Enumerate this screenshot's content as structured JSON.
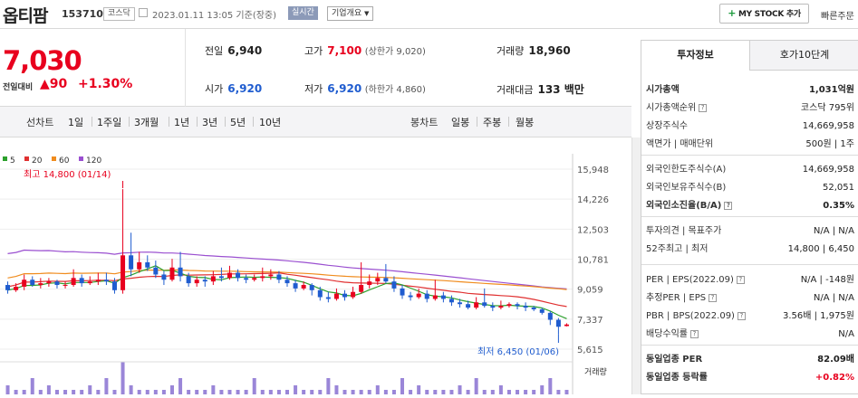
{
  "header": {
    "stock_name": "옵티팜",
    "stock_code": "153710",
    "market_badge": "코스닥",
    "date_text": "2023.01.11 13:05 기준(장중)",
    "realtime_label": "실시간",
    "company_overview_label": "기업개요",
    "my_stock_label": "MY STOCK 추가",
    "quick_order_label": "빠른주문"
  },
  "price_box": {
    "current_price": "7,030",
    "change_label": "전일대비",
    "change_arrow": "▲",
    "change_value": "90",
    "change_percent": "+1.30%",
    "prev_close_label": "전일",
    "prev_close": "6,940",
    "high_label": "고가",
    "high": "7,100",
    "upper_limit_text": "(상한가 9,020)",
    "volume_label": "거래량",
    "volume": "18,960",
    "open_label": "시가",
    "open": "6,920",
    "low_label": "저가",
    "low": "6,920",
    "lower_limit_text": "(하한가 4,860)",
    "amount_label": "거래대금",
    "amount": "133 백만"
  },
  "period_bar": {
    "line_label": "선차트",
    "line_periods": [
      "1일",
      "1주일",
      "3개월",
      "1년",
      "3년",
      "5년",
      "10년"
    ],
    "candle_label": "봉차트",
    "candle_periods": [
      "일봉",
      "주봉",
      "월봉"
    ],
    "active_candle": "주봉"
  },
  "chart_data": {
    "type": "candlestick",
    "legend": [
      {
        "name": "5",
        "color": "#2ca02c"
      },
      {
        "name": "20",
        "color": "#e03030"
      },
      {
        "name": "60",
        "color": "#f08c1e"
      },
      {
        "name": "120",
        "color": "#9a4fd0"
      }
    ],
    "y_ticks": [
      "15,948",
      "14,226",
      "12,503",
      "10,781",
      "9,059",
      "7,337",
      "5,615"
    ],
    "ylim": [
      5615,
      15948
    ],
    "high_annotation": "최고 14,800 (01/14)",
    "low_annotation": "최저 6,450 (01/06)",
    "volume_label": "거래량",
    "candles": [
      [
        9300,
        9000,
        9500,
        8800
      ],
      [
        9000,
        9200,
        9400,
        8900
      ],
      [
        9200,
        9600,
        9900,
        9000
      ],
      [
        9600,
        9300,
        9800,
        9200
      ],
      [
        9300,
        9400,
        9700,
        9100
      ],
      [
        9400,
        9500,
        9700,
        9200
      ],
      [
        9500,
        9300,
        9600,
        9100
      ],
      [
        9300,
        9300,
        9500,
        9100
      ],
      [
        9300,
        9700,
        10200,
        9200
      ],
      [
        9700,
        9400,
        9900,
        9200
      ],
      [
        9400,
        9500,
        9800,
        9300
      ],
      [
        9500,
        9600,
        10000,
        9300
      ],
      [
        9600,
        9500,
        10000,
        9300
      ],
      [
        9500,
        9000,
        9700,
        8800
      ],
      [
        9000,
        11000,
        14800,
        8800
      ],
      [
        11000,
        10200,
        12300,
        9800
      ],
      [
        10200,
        10600,
        11200,
        10000
      ],
      [
        10600,
        10300,
        11000,
        10100
      ],
      [
        10300,
        9900,
        10700,
        9700
      ],
      [
        9900,
        9600,
        10100,
        9300
      ],
      [
        9600,
        10300,
        10800,
        9500
      ],
      [
        10300,
        9800,
        11200,
        9500
      ],
      [
        9800,
        9400,
        10000,
        9200
      ],
      [
        9400,
        9600,
        9800,
        9200
      ],
      [
        9600,
        9500,
        9800,
        9200
      ],
      [
        9500,
        9800,
        10100,
        9300
      ],
      [
        9800,
        9700,
        10300,
        9500
      ],
      [
        9700,
        10000,
        10400,
        9600
      ],
      [
        10000,
        9700,
        10200,
        9500
      ],
      [
        9700,
        9600,
        9900,
        9400
      ],
      [
        9600,
        9700,
        9900,
        9500
      ],
      [
        9700,
        9800,
        10300,
        9500
      ],
      [
        9800,
        9900,
        10200,
        9600
      ],
      [
        9900,
        9600,
        10100,
        9400
      ],
      [
        9600,
        9400,
        9800,
        9200
      ],
      [
        9400,
        9100,
        9600,
        8900
      ],
      [
        9100,
        9300,
        9500,
        9000
      ],
      [
        9300,
        9000,
        9400,
        8700
      ],
      [
        9000,
        8600,
        9200,
        8400
      ],
      [
        8600,
        8500,
        8900,
        8300
      ],
      [
        8500,
        8800,
        9100,
        8400
      ],
      [
        8800,
        8600,
        9000,
        8400
      ],
      [
        8600,
        8900,
        9200,
        8500
      ],
      [
        8900,
        9300,
        10600,
        8800
      ],
      [
        9300,
        9500,
        9900,
        9100
      ],
      [
        9500,
        9700,
        10000,
        9300
      ],
      [
        9700,
        9500,
        10500,
        9400
      ],
      [
        9500,
        9100,
        9800,
        8900
      ],
      [
        9100,
        8700,
        9300,
        8500
      ],
      [
        8700,
        8600,
        8900,
        8400
      ],
      [
        8600,
        8800,
        9100,
        8500
      ],
      [
        8800,
        8500,
        9000,
        8300
      ],
      [
        8500,
        8700,
        9600,
        8400
      ],
      [
        8700,
        8500,
        8900,
        8300
      ],
      [
        8500,
        8300,
        8700,
        8100
      ],
      [
        8300,
        8200,
        8500,
        8000
      ],
      [
        8200,
        8000,
        8400,
        7900
      ],
      [
        8000,
        8300,
        8600,
        7900
      ],
      [
        8300,
        8100,
        9100,
        8000
      ],
      [
        8100,
        8000,
        8300,
        7800
      ],
      [
        8000,
        8100,
        8400,
        7900
      ],
      [
        8100,
        8200,
        8300,
        8000
      ],
      [
        8200,
        8100,
        8300,
        7900
      ],
      [
        8100,
        8000,
        8300,
        7800
      ],
      [
        8000,
        7900,
        8100,
        7800
      ],
      [
        7900,
        7700,
        8000,
        7600
      ],
      [
        7700,
        7300,
        7800,
        7000
      ],
      [
        7300,
        6900,
        7400,
        6450
      ],
      [
        6940,
        7030,
        7100,
        6920
      ]
    ]
  },
  "side_panel": {
    "tab_invest": "투자정보",
    "tab_quote": "호가10단계",
    "rows": [
      {
        "label": "시가총액",
        "value": "1,031억원"
      },
      {
        "label": "시가총액순위",
        "value": "코스닥 795위"
      },
      {
        "label": "상장주식수",
        "value": "14,669,958"
      },
      {
        "label": "액면가 | 매매단위",
        "value": "500원 | 1주"
      },
      {
        "label": "외국인한도주식수(A)",
        "value": "14,669,958"
      },
      {
        "label": "외국인보유주식수(B)",
        "value": "52,051"
      },
      {
        "label": "외국인소진율(B/A)",
        "value": "0.35%"
      },
      {
        "label": "투자의견 | 목표주가",
        "value": "N/A | N/A"
      },
      {
        "label": "52주최고 | 최저",
        "value": "14,800 | 6,450"
      },
      {
        "label": "PER | EPS(2022.09)",
        "value": "N/A | -148원"
      },
      {
        "label": "추정PER | EPS",
        "value": "N/A | N/A"
      },
      {
        "label": "PBR | BPS(2022.09)",
        "value": "3.56배 | 1,975원"
      },
      {
        "label": "배당수익률",
        "value": "N/A"
      },
      {
        "label": "동일업종 PER",
        "value": "82.09배"
      },
      {
        "label": "동일업종 등락률",
        "value": "+0.82%"
      }
    ]
  }
}
